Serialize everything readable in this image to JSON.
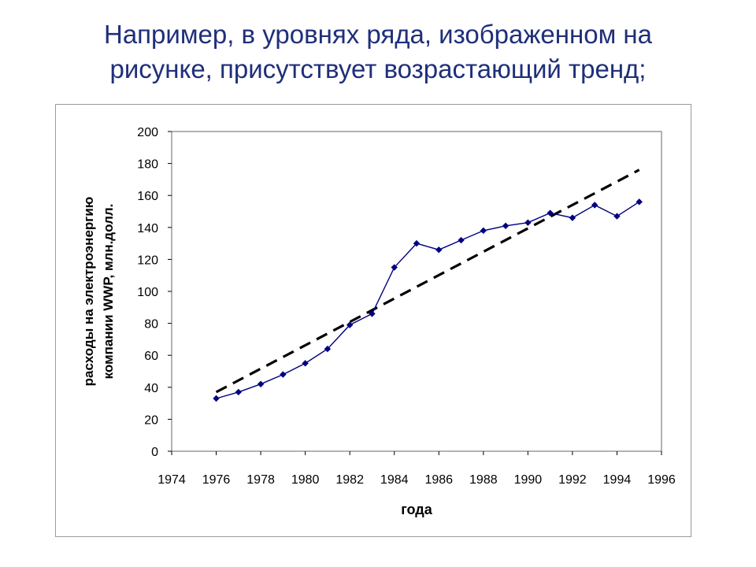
{
  "slide": {
    "title_line1": "Например, в уровнях ряда, изображенном на",
    "title_line2": "рисунке, присутствует возрастающий тренд;"
  },
  "colors": {
    "title": "#1f2f7a",
    "series": "#000080",
    "trend": "#000000",
    "plot_border": "#808080",
    "frame_border": "#9a9a9a"
  },
  "chart_data": {
    "type": "line",
    "title": "",
    "xlabel": "года",
    "ylabel_line1": "расходы на электроэнергию",
    "ylabel_line2": "компании WWP, млн.долл.",
    "xlim": [
      1974,
      1996
    ],
    "ylim": [
      0,
      200
    ],
    "x_ticks": [
      1974,
      1976,
      1978,
      1980,
      1982,
      1984,
      1986,
      1988,
      1990,
      1992,
      1994,
      1996
    ],
    "y_ticks": [
      0,
      20,
      40,
      60,
      80,
      100,
      120,
      140,
      160,
      180,
      200
    ],
    "grid": false,
    "legend": "none",
    "series": [
      {
        "style": "line-with-diamond-markers",
        "x": [
          1976,
          1977,
          1978,
          1979,
          1980,
          1981,
          1982,
          1983,
          1984,
          1985,
          1986,
          1987,
          1988,
          1989,
          1990,
          1991,
          1992,
          1993,
          1994,
          1995
        ],
        "y": [
          33,
          37,
          42,
          48,
          55,
          64,
          79,
          86,
          115,
          130,
          126,
          132,
          138,
          141,
          143,
          149,
          146,
          154,
          147,
          156
        ]
      },
      {
        "style": "dashed-linear-trend",
        "x": [
          1976,
          1995
        ],
        "y": [
          37,
          176
        ]
      }
    ]
  }
}
